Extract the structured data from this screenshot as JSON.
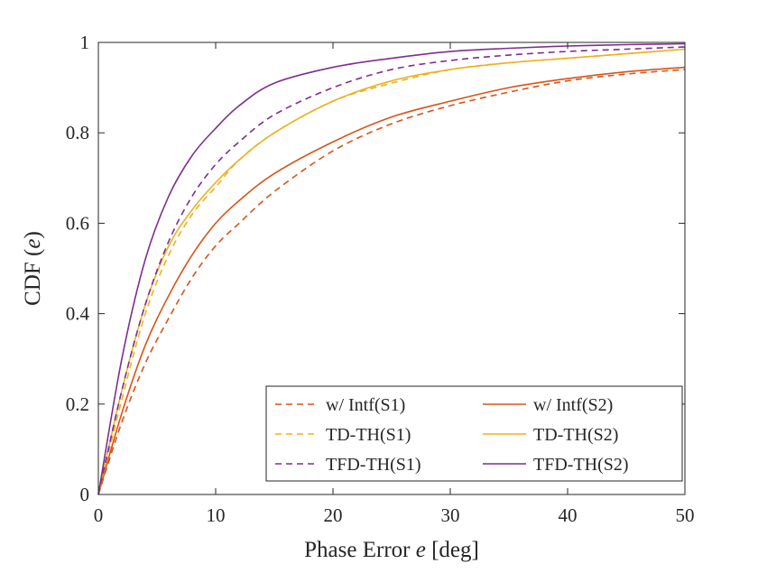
{
  "chart_data": {
    "type": "line",
    "title": "",
    "xlabel_prefix": "Phase Error ",
    "xlabel_var": "e",
    "xlabel_suffix": " [deg]",
    "ylabel_prefix": "CDF (",
    "ylabel_var": "e",
    "ylabel_suffix": ")",
    "xlim": [
      0,
      50
    ],
    "ylim": [
      0,
      1
    ],
    "xticks": [
      0,
      10,
      20,
      30,
      40,
      50
    ],
    "yticks": [
      0,
      0.2,
      0.4,
      0.6,
      0.8,
      1
    ],
    "ytick_labels": [
      "0",
      "0.2",
      "0.4",
      "0.6",
      "0.8",
      "1"
    ],
    "xtick_labels": [
      "0",
      "10",
      "20",
      "30",
      "40",
      "50"
    ],
    "grid": false,
    "legend_position": "bottom-right",
    "x": [
      0,
      2,
      4,
      6,
      8,
      10,
      12,
      15,
      20,
      25,
      30,
      35,
      40,
      45,
      50
    ],
    "series": [
      {
        "name": "w/ Intf(S1)",
        "color": "#D95319",
        "dash": "dashed",
        "values": [
          0,
          0.16,
          0.29,
          0.39,
          0.48,
          0.55,
          0.6,
          0.67,
          0.76,
          0.82,
          0.86,
          0.89,
          0.915,
          0.93,
          0.94
        ]
      },
      {
        "name": "w/ Intf(S2)",
        "color": "#D95319",
        "dash": "solid",
        "values": [
          0,
          0.18,
          0.33,
          0.44,
          0.53,
          0.6,
          0.65,
          0.71,
          0.78,
          0.835,
          0.87,
          0.9,
          0.92,
          0.935,
          0.945
        ]
      },
      {
        "name": "TD-TH(S1)",
        "color": "#EDB120",
        "dash": "dashed",
        "values": [
          0,
          0.21,
          0.4,
          0.53,
          0.62,
          0.68,
          0.74,
          0.8,
          0.87,
          0.91,
          0.94,
          0.955,
          0.965,
          0.975,
          0.985
        ]
      },
      {
        "name": "TD-TH(S2)",
        "color": "#EDB120",
        "dash": "solid",
        "values": [
          0,
          0.23,
          0.42,
          0.55,
          0.63,
          0.69,
          0.74,
          0.8,
          0.87,
          0.915,
          0.94,
          0.955,
          0.965,
          0.975,
          0.985
        ]
      },
      {
        "name": "TFD-TH(S1)",
        "color": "#7E2F8E",
        "dash": "dashed",
        "values": [
          0,
          0.23,
          0.42,
          0.56,
          0.66,
          0.73,
          0.78,
          0.84,
          0.9,
          0.94,
          0.96,
          0.972,
          0.98,
          0.985,
          0.99
        ]
      },
      {
        "name": "TFD-TH(S2)",
        "color": "#7E2F8E",
        "dash": "solid",
        "values": [
          0,
          0.3,
          0.52,
          0.66,
          0.75,
          0.81,
          0.86,
          0.91,
          0.945,
          0.965,
          0.98,
          0.987,
          0.992,
          0.995,
          0.997
        ]
      }
    ],
    "legend_order": [
      0,
      1,
      2,
      3,
      4,
      5
    ]
  }
}
